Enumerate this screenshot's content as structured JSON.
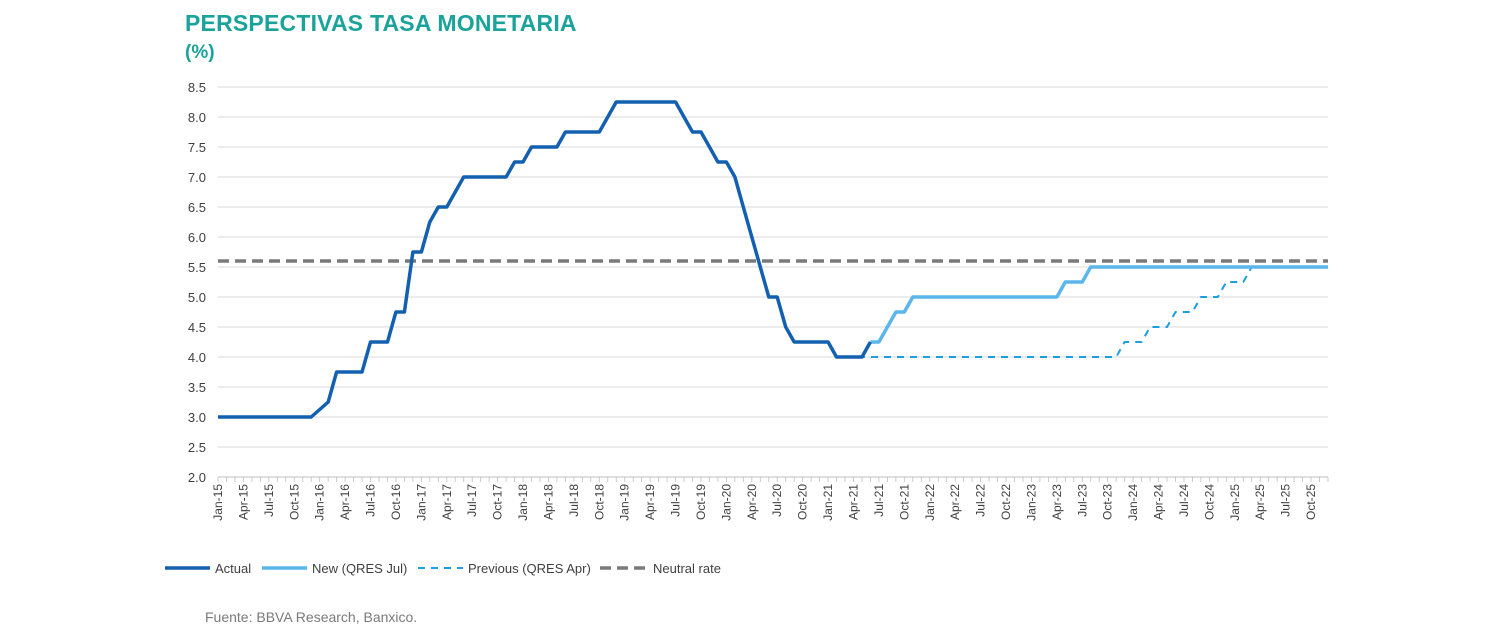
{
  "header": {
    "title": "PERSPECTIVAS TASA MONETARIA",
    "subtitle": "(%)"
  },
  "footer": {
    "source": "Fuente: BBVA Research, Banxico."
  },
  "chart_data": {
    "type": "line",
    "y_ticks": [
      "8.5",
      "8.0",
      "7.5",
      "7.0",
      "6.5",
      "6.0",
      "5.5",
      "5.0",
      "4.5",
      "4.0",
      "3.5",
      "3.0",
      "2.5",
      "2.0"
    ],
    "ylim": [
      2.0,
      8.5
    ],
    "grid": true,
    "legend_position": "bottom-left",
    "x_tick_labels": [
      "Jan-15",
      "Apr-15",
      "Jul-15",
      "Oct-15",
      "Jan-16",
      "Apr-16",
      "Jul-16",
      "Oct-16",
      "Jan-17",
      "Apr-17",
      "Jul-17",
      "Oct-17",
      "Jan-18",
      "Apr-18",
      "Jul-18",
      "Oct-18",
      "Jan-19",
      "Apr-19",
      "Jul-19",
      "Oct-19",
      "Jan-20",
      "Apr-20",
      "Jul-20",
      "Oct-20",
      "Jan-21",
      "Apr-21",
      "Jul-21",
      "Oct-21",
      "Jan-22",
      "Apr-22",
      "Jul-22",
      "Oct-22",
      "Jan-23",
      "Apr-23",
      "Jul-23",
      "Oct-23",
      "Jan-24",
      "Apr-24",
      "Jul-24",
      "Oct-24",
      "Jan-25",
      "Apr-25",
      "Jul-25",
      "Oct-25"
    ],
    "x_range": [
      "2015-01",
      "2025-12"
    ],
    "series": [
      {
        "name": "Actual",
        "color": "#1360b0",
        "style": "solid",
        "points": [
          [
            "2015-01",
            3.0
          ],
          [
            "2015-12",
            3.0
          ],
          [
            "2016-02",
            3.25
          ],
          [
            "2016-03",
            3.75
          ],
          [
            "2016-06",
            3.75
          ],
          [
            "2016-07",
            4.25
          ],
          [
            "2016-09",
            4.25
          ],
          [
            "2016-10",
            4.75
          ],
          [
            "2016-11",
            4.75
          ],
          [
            "2016-12",
            5.75
          ],
          [
            "2017-01",
            5.75
          ],
          [
            "2017-02",
            6.25
          ],
          [
            "2017-03",
            6.5
          ],
          [
            "2017-04",
            6.5
          ],
          [
            "2017-06",
            7.0
          ],
          [
            "2017-11",
            7.0
          ],
          [
            "2017-12",
            7.25
          ],
          [
            "2018-01",
            7.25
          ],
          [
            "2018-02",
            7.5
          ],
          [
            "2018-05",
            7.5
          ],
          [
            "2018-06",
            7.75
          ],
          [
            "2018-10",
            7.75
          ],
          [
            "2018-12",
            8.25
          ],
          [
            "2019-07",
            8.25
          ],
          [
            "2019-08",
            8.0
          ],
          [
            "2019-09",
            7.75
          ],
          [
            "2019-10",
            7.75
          ],
          [
            "2019-11",
            7.5
          ],
          [
            "2019-12",
            7.25
          ],
          [
            "2020-01",
            7.25
          ],
          [
            "2020-02",
            7.0
          ],
          [
            "2020-03",
            6.5
          ],
          [
            "2020-04",
            6.0
          ],
          [
            "2020-05",
            5.5
          ],
          [
            "2020-06",
            5.0
          ],
          [
            "2020-07",
            5.0
          ],
          [
            "2020-08",
            4.5
          ],
          [
            "2020-09",
            4.25
          ],
          [
            "2021-01",
            4.25
          ],
          [
            "2021-02",
            4.0
          ],
          [
            "2021-05",
            4.0
          ],
          [
            "2021-06",
            4.25
          ]
        ]
      },
      {
        "name": "New (QRES Jul)",
        "color": "#5bb6ec",
        "style": "solid",
        "points": [
          [
            "2021-06",
            4.25
          ],
          [
            "2021-07",
            4.25
          ],
          [
            "2021-08",
            4.5
          ],
          [
            "2021-09",
            4.75
          ],
          [
            "2021-10",
            4.75
          ],
          [
            "2021-11",
            5.0
          ],
          [
            "2023-04",
            5.0
          ],
          [
            "2023-05",
            5.25
          ],
          [
            "2023-07",
            5.25
          ],
          [
            "2023-08",
            5.5
          ],
          [
            "2025-12",
            5.5
          ]
        ]
      },
      {
        "name": "Previous (QRES Apr)",
        "color": "#1a9fe0",
        "style": "dashed",
        "points": [
          [
            "2021-03",
            4.0
          ],
          [
            "2023-11",
            4.0
          ],
          [
            "2023-12",
            4.25
          ],
          [
            "2024-02",
            4.25
          ],
          [
            "2024-03",
            4.5
          ],
          [
            "2024-05",
            4.5
          ],
          [
            "2024-06",
            4.75
          ],
          [
            "2024-08",
            4.75
          ],
          [
            "2024-09",
            5.0
          ],
          [
            "2024-11",
            5.0
          ],
          [
            "2024-12",
            5.25
          ],
          [
            "2025-02",
            5.25
          ],
          [
            "2025-03",
            5.5
          ],
          [
            "2025-12",
            5.5
          ]
        ]
      },
      {
        "name": "Neutral rate",
        "color": "#7a7a7a",
        "style": "dashed-thick",
        "points": [
          [
            "2015-01",
            5.6
          ],
          [
            "2025-12",
            5.6
          ]
        ]
      }
    ]
  }
}
